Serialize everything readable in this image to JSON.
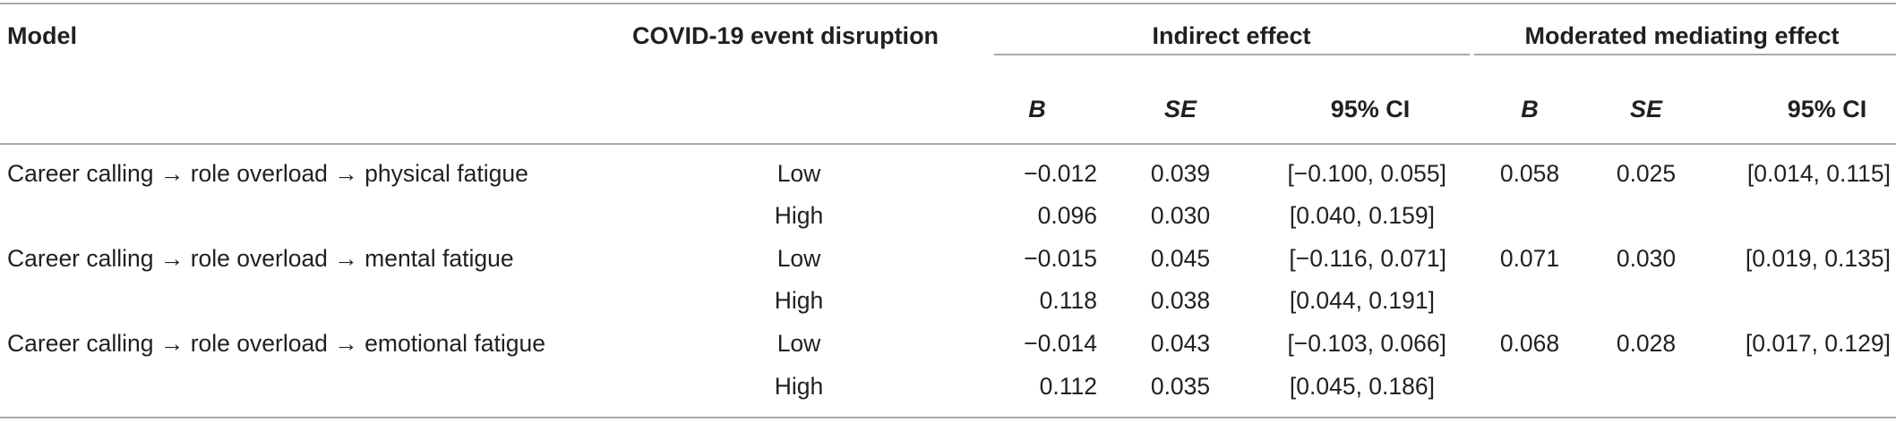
{
  "header": {
    "model": "Model",
    "disruption": "COVID-19 event disruption",
    "indirect_effect": "Indirect effect",
    "moderated_mediating_effect": "Moderated mediating effect",
    "sub": {
      "b1": "B",
      "se1": "SE",
      "ci1": "95% CI",
      "b2": "B",
      "se2": "SE",
      "ci2": "95% CI"
    }
  },
  "rows": [
    {
      "model": "Career calling → role overload → physical fatigue",
      "low": {
        "level": "Low",
        "b": "−0.012",
        "se": "0.039",
        "ci": "[−0.100, 0.055]"
      },
      "high": {
        "level": "High",
        "b": "0.096",
        "se": "0.030",
        "ci": "[0.040, 0.159]"
      },
      "mod": {
        "b": "0.058",
        "se": "0.025",
        "ci": "[0.014, 0.115]"
      }
    },
    {
      "model": "Career calling → role overload → mental fatigue",
      "low": {
        "level": "Low",
        "b": "−0.015",
        "se": "0.045",
        "ci": "[−0.116, 0.071]"
      },
      "high": {
        "level": "High",
        "b": "0.118",
        "se": "0.038",
        "ci": "[0.044, 0.191]"
      },
      "mod": {
        "b": "0.071",
        "se": "0.030",
        "ci": "[0.019, 0.135]"
      }
    },
    {
      "model": "Career calling → role overload → emotional fatigue",
      "low": {
        "level": "Low",
        "b": "−0.014",
        "se": "0.043",
        "ci": "[−0.103, 0.066]"
      },
      "high": {
        "level": "High",
        "b": "0.112",
        "se": "0.035",
        "ci": "[0.045, 0.186]"
      },
      "mod": {
        "b": "0.068",
        "se": "0.028",
        "ci": "[0.017, 0.129]"
      }
    }
  ]
}
